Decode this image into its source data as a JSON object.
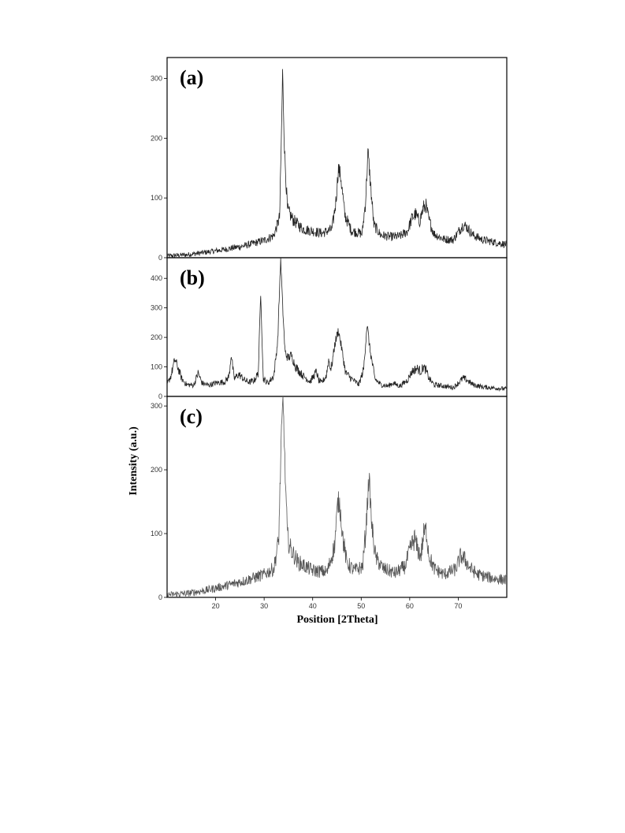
{
  "chart_data": [
    {
      "type": "line",
      "panel_label": "(a)",
      "xlim": [
        10,
        80
      ],
      "ylim": [
        0,
        335
      ],
      "yticks": [
        0,
        100,
        200,
        300
      ],
      "show_xticks": false,
      "series": [
        {
          "x": [
            10,
            14,
            18,
            22,
            26,
            30,
            32,
            33.2,
            33.6,
            33.8,
            34.2,
            34.8,
            36,
            38,
            42,
            44,
            44.8,
            45.3,
            45.8,
            46.6,
            48,
            50.2,
            50.9,
            51.4,
            51.9,
            52.6,
            54,
            56,
            58,
            59.5,
            60.5,
            61.2,
            62,
            62.8,
            63.3,
            64,
            65,
            67,
            69,
            70.3,
            71,
            71.7,
            73,
            75,
            78,
            80
          ],
          "y": [
            3,
            5,
            9,
            14,
            20,
            29,
            37,
            68,
            220,
            310,
            180,
            80,
            63,
            48,
            41,
            48,
            95,
            150,
            135,
            72,
            45,
            40,
            95,
            178,
            125,
            55,
            38,
            35,
            36,
            44,
            67,
            73,
            60,
            83,
            88,
            62,
            40,
            31,
            30,
            47,
            55,
            52,
            38,
            30,
            25,
            22
          ],
          "noise": 7
        }
      ]
    },
    {
      "type": "line",
      "panel_label": "(b)",
      "xlim": [
        10,
        80
      ],
      "ylim": [
        0,
        470
      ],
      "yticks": [
        0,
        100,
        200,
        300,
        400
      ],
      "show_xticks": false,
      "series": [
        {
          "x": [
            10,
            10.8,
            11.6,
            12.2,
            13,
            14,
            15.5,
            16.4,
            17.2,
            18.5,
            20,
            22,
            22.8,
            23.2,
            23.8,
            24.8,
            26,
            27,
            28,
            28.8,
            29.3,
            29.8,
            30.8,
            32,
            32.8,
            33.4,
            33.8,
            34.3,
            34.9,
            35.6,
            36.5,
            38,
            39.5,
            40.8,
            41.2,
            41.8,
            42.8,
            43.3,
            43.8,
            44.6,
            45.3,
            46,
            46.8,
            48,
            49.5,
            50.5,
            51.2,
            51.8,
            52.8,
            54,
            55.5,
            56.5,
            58,
            59.5,
            60.5,
            61.5,
            62.3,
            62.8,
            63.3,
            64,
            65,
            67,
            69,
            70.3,
            71,
            71.8,
            73,
            75,
            78,
            80
          ],
          "y": [
            40,
            70,
            125,
            100,
            60,
            40,
            38,
            80,
            45,
            38,
            45,
            50,
            70,
            145,
            60,
            75,
            55,
            48,
            55,
            80,
            360,
            60,
            45,
            70,
            190,
            470,
            310,
            150,
            130,
            140,
            100,
            70,
            50,
            85,
            55,
            45,
            70,
            125,
            90,
            180,
            225,
            160,
            80,
            60,
            40,
            90,
            245,
            160,
            60,
            40,
            35,
            45,
            35,
            55,
            85,
            95,
            85,
            100,
            90,
            60,
            40,
            35,
            30,
            50,
            62,
            55,
            40,
            32,
            28,
            25
          ],
          "noise": 8
        }
      ]
    },
    {
      "type": "line",
      "panel_label": "(c)",
      "xlim": [
        10,
        80
      ],
      "ylim": [
        0,
        315
      ],
      "yticks": [
        0,
        100,
        200,
        300
      ],
      "xticks": [
        20,
        30,
        40,
        50,
        60,
        70
      ],
      "xlabel": "Position [2Theta]",
      "ylabel": "Intensity (a.u.)",
      "series": [
        {
          "x": [
            10,
            14,
            18,
            22,
            26,
            30,
            32,
            33,
            33.5,
            33.9,
            34.3,
            34.8,
            35.5,
            37,
            40,
            43,
            44.5,
            45.2,
            45.6,
            46.2,
            47,
            48.5,
            50.3,
            51,
            51.6,
            52.2,
            53,
            54.5,
            57,
            59,
            60.3,
            61,
            61.6,
            62.3,
            62.9,
            63.4,
            64,
            65,
            67,
            69.5,
            70.5,
            71.3,
            72.5,
            74,
            77,
            80
          ],
          "y": [
            4,
            6,
            11,
            18,
            26,
            36,
            45,
            90,
            240,
            315,
            200,
            95,
            75,
            55,
            42,
            40,
            80,
            150,
            145,
            95,
            55,
            42,
            48,
            110,
            190,
            110,
            62,
            45,
            38,
            48,
            80,
            92,
            75,
            65,
            100,
            105,
            65,
            45,
            36,
            44,
            65,
            60,
            45,
            36,
            30,
            27
          ],
          "noise": 9
        }
      ]
    }
  ]
}
